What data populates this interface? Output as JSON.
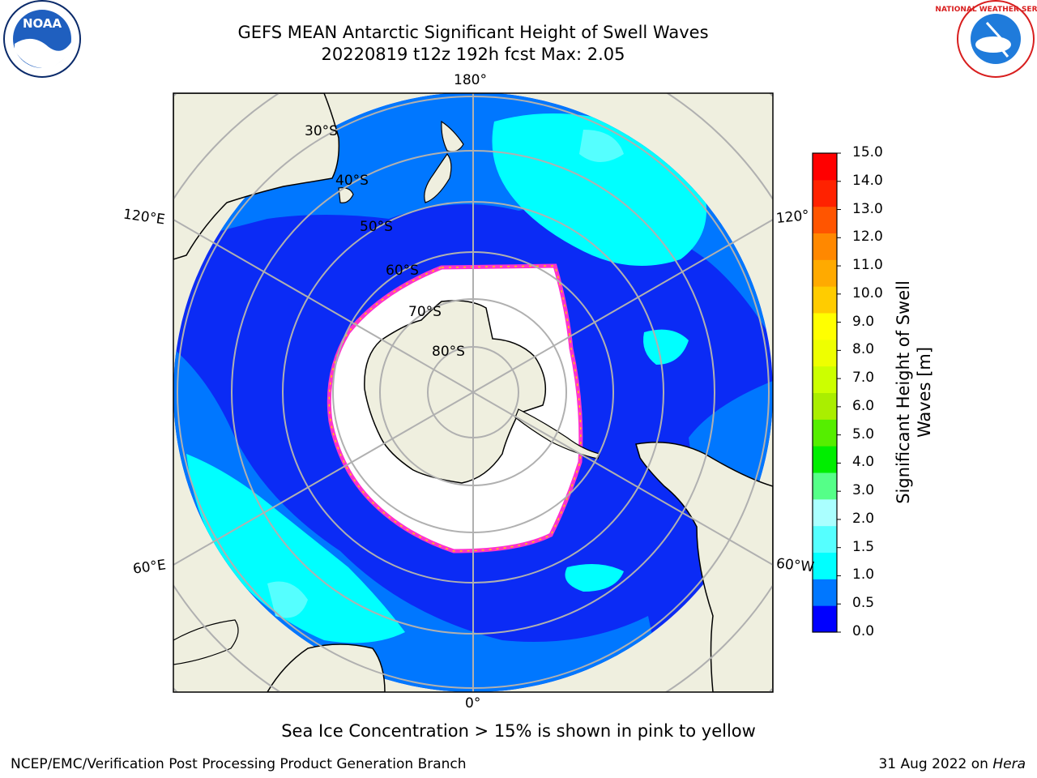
{
  "title_line1": "GEFS MEAN Antarctic Significant Height of Swell Waves",
  "title_line2": "20220819 t12z 192h fcst   Max: 2.05",
  "logo_left_text": "NOAA",
  "logo_right_text": "NATIONAL WEATHER SERVICE",
  "lon_labels": {
    "top": "180°",
    "bottom": "0°",
    "upper_left": "120°E",
    "lower_left": "60°E",
    "upper_right": "120°",
    "lower_right": "60°W"
  },
  "lat_labels": [
    "30°S",
    "40°S",
    "50°S",
    "60°S",
    "70°S",
    "80°S"
  ],
  "colorbar": {
    "title_line1": "Significant Height of Swell",
    "title_line2": "Waves [m]",
    "ticks": [
      "0.0",
      "0.5",
      "1.0",
      "1.5",
      "2.0",
      "3.0",
      "4.0",
      "5.0",
      "6.0",
      "7.0",
      "8.0",
      "9.0",
      "10.0",
      "11.0",
      "12.0",
      "13.0",
      "14.0",
      "15.0"
    ],
    "colors": [
      "#0000ff",
      "#0077ff",
      "#00ffff",
      "#55ffff",
      "#aaffff",
      "#55ff88",
      "#00ee00",
      "#55ee00",
      "#aaee00",
      "#ccff00",
      "#eeff00",
      "#ffff00",
      "#ffcc00",
      "#ffaa00",
      "#ff8800",
      "#ff5500",
      "#ff2200",
      "#ff0000"
    ]
  },
  "note": "Sea Ice Concentration > 15% is shown in pink to yellow",
  "footer_left": "NCEP/EMC/Verification Post Processing Product Generation Branch",
  "footer_right_prefix": "31 Aug 2022 on",
  "footer_right_host": "Hera"
}
